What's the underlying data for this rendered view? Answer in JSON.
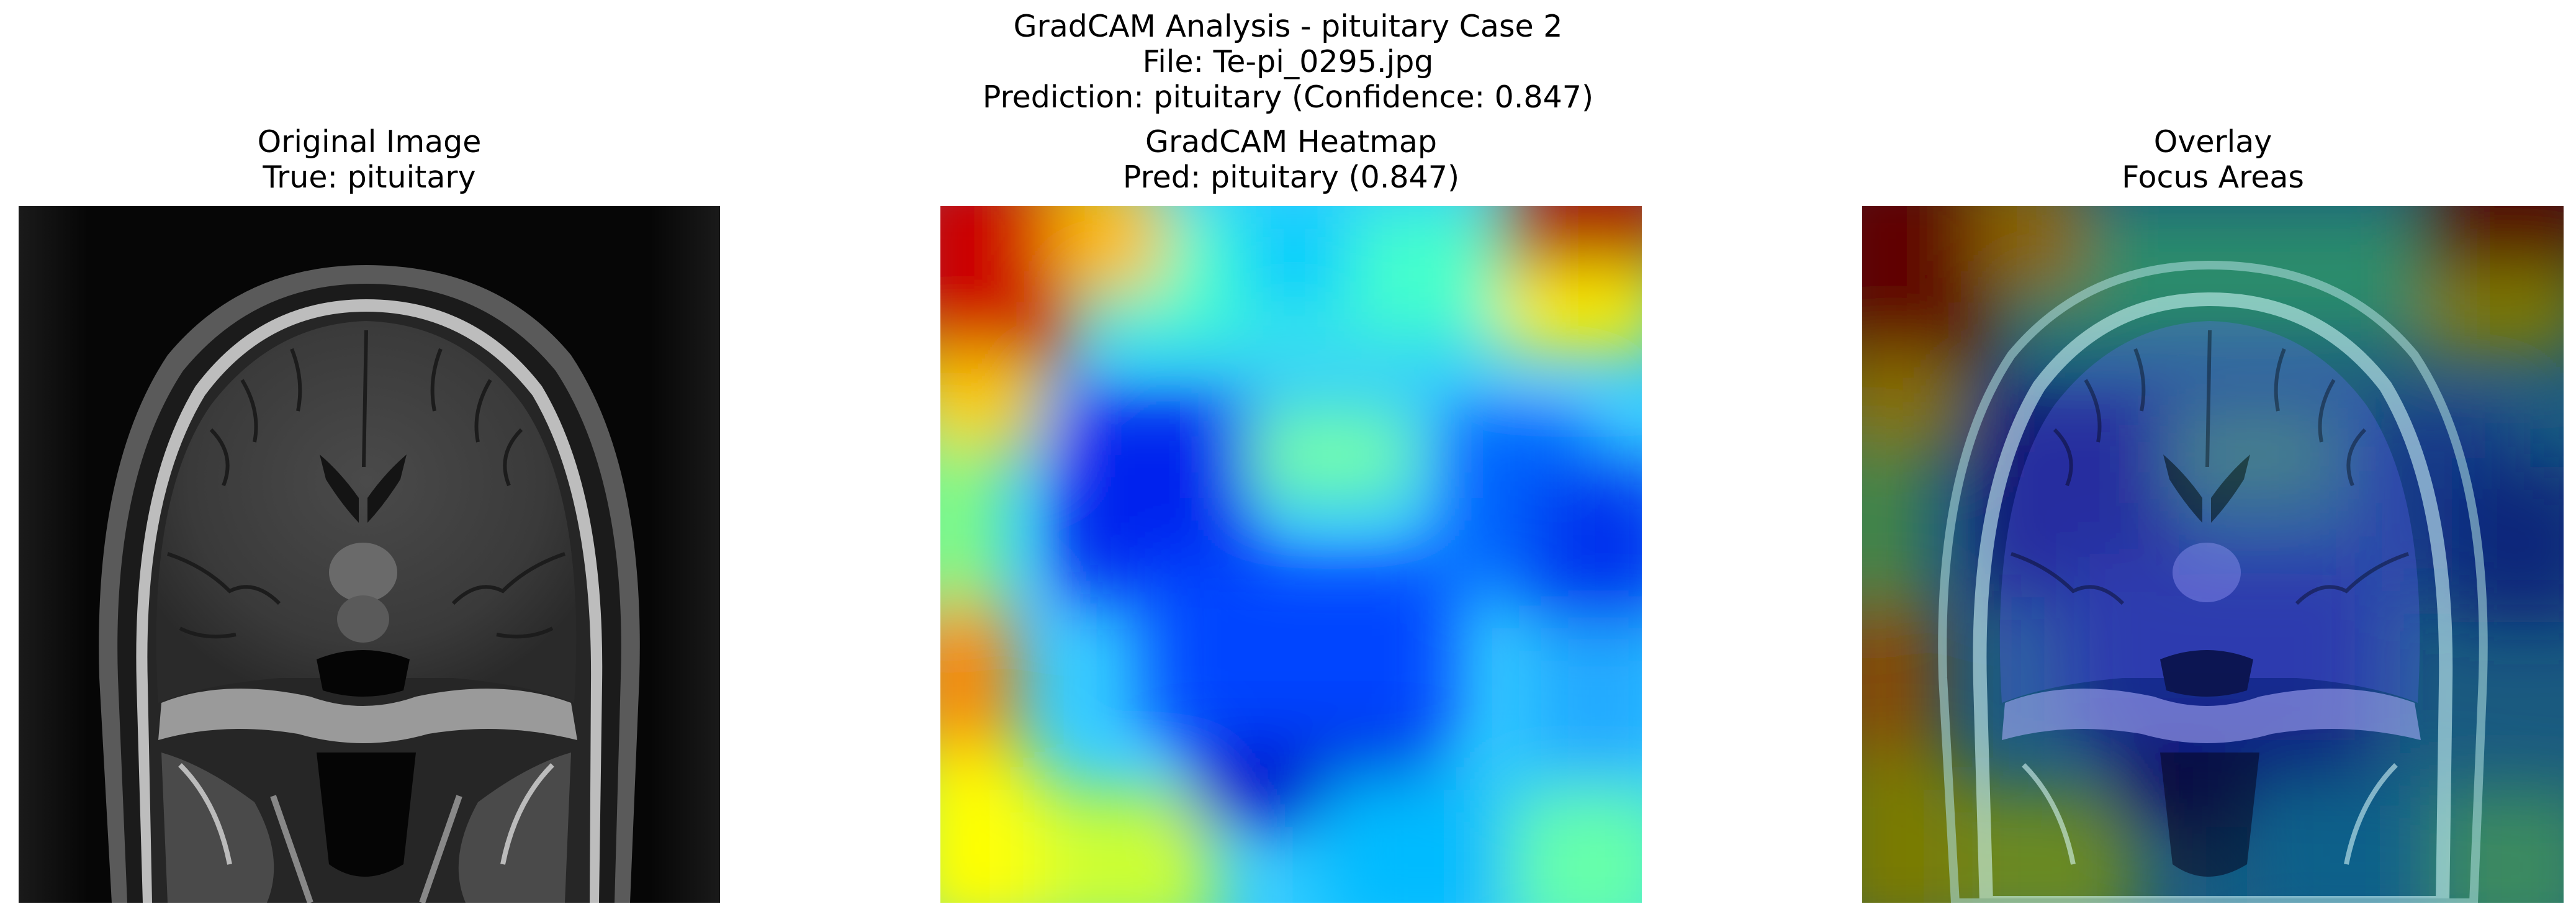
{
  "figure": {
    "title_lines": [
      "GradCAM Analysis - pituitary Case 2",
      "File: Te-pi_0295.jpg",
      "Prediction: pituitary (Confidence: 0.847)"
    ]
  },
  "panels": [
    {
      "id": "original",
      "title_lines": [
        "Original Image",
        "True: pituitary"
      ]
    },
    {
      "id": "heatmap",
      "title_lines": [
        "GradCAM Heatmap",
        "Pred: pituitary (0.847)"
      ]
    },
    {
      "id": "overlay",
      "title_lines": [
        "Overlay",
        "Focus Areas"
      ]
    }
  ],
  "colormap": "jet"
}
